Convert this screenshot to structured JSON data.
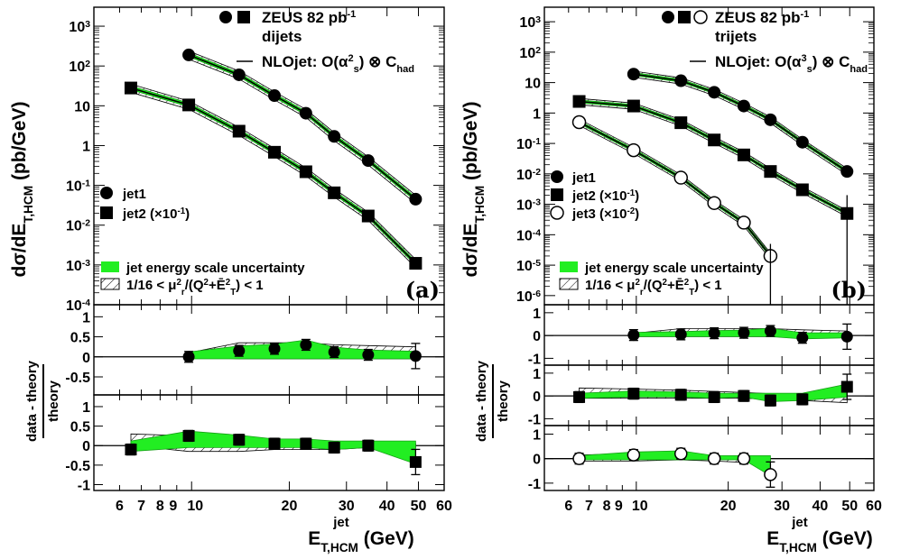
{
  "chart_data": [
    {
      "panel": "(a)",
      "type": "scatter",
      "experiment": "ZEUS 82 pb⁻¹",
      "sample": "dijets",
      "theory": "NLOjet: O(αs²) ⊗ Chad",
      "xlabel": "E T,HCM jet (GeV)",
      "ylabel": "dσ/dE T,HCM jet (pb/GeV)",
      "ratio_ylabel": "data - theory / theory",
      "xlim": [
        5,
        60
      ],
      "ylim": [
        0.0001,
        3000
      ],
      "xscale": "log",
      "yscale": "log",
      "legend": [
        "jet1",
        "jet2 (×10⁻¹)"
      ],
      "uncertainty_legend": [
        "jet energy scale uncertainty",
        "1/16 < μr²/(Q²+ĒT²) < 1"
      ],
      "series": [
        {
          "name": "jet1",
          "marker": "circle",
          "x": [
            9.8,
            14.0,
            18.0,
            22.5,
            27.5,
            35.0,
            49.0
          ],
          "y": [
            190,
            60,
            18,
            6.5,
            1.7,
            0.42,
            0.045
          ],
          "ratio": [
            0.0,
            0.15,
            0.2,
            0.3,
            0.12,
            0.05,
            0.02
          ]
        },
        {
          "name": "jet2",
          "marker": "square",
          "x": [
            6.5,
            9.8,
            14.0,
            18.0,
            22.5,
            27.5,
            35.0,
            49.0
          ],
          "y": [
            28,
            10.5,
            2.3,
            0.68,
            0.22,
            0.065,
            0.017,
            0.0011
          ],
          "ratio": [
            -0.1,
            0.25,
            0.15,
            0.05,
            0.05,
            -0.05,
            0.0,
            -0.42
          ]
        }
      ]
    },
    {
      "panel": "(b)",
      "type": "scatter",
      "experiment": "ZEUS 82 pb⁻¹",
      "sample": "trijets",
      "theory": "NLOjet: O(αs³) ⊗ Chad",
      "xlabel": "E T,HCM jet (GeV)",
      "ylabel": "dσ/dE T,HCM jet (pb/GeV)",
      "ratio_ylabel": "data - theory / theory",
      "xlim": [
        5,
        60
      ],
      "ylim": [
        5e-07,
        3000
      ],
      "xscale": "log",
      "yscale": "log",
      "legend": [
        "jet1",
        "jet2 (×10⁻¹)",
        "jet3 (×10⁻²)"
      ],
      "uncertainty_legend": [
        "jet energy scale uncertainty",
        "1/16 < μr²/(Q²+ĒT²) < 1"
      ],
      "series": [
        {
          "name": "jet1",
          "marker": "circle",
          "x": [
            9.8,
            14.0,
            18.0,
            22.5,
            27.5,
            35.0,
            49.0
          ],
          "y": [
            19,
            11.5,
            4.8,
            1.7,
            0.6,
            0.11,
            0.012
          ],
          "ratio": [
            0.02,
            0.05,
            0.1,
            0.12,
            0.2,
            -0.1,
            -0.05
          ]
        },
        {
          "name": "jet2",
          "marker": "square",
          "x": [
            6.5,
            9.8,
            14.0,
            18.0,
            22.5,
            27.5,
            35.0,
            49.0
          ],
          "y": [
            2.4,
            1.7,
            0.48,
            0.13,
            0.042,
            0.012,
            0.003,
            0.0005
          ],
          "ratio": [
            -0.05,
            0.1,
            0.05,
            -0.05,
            0.0,
            -0.2,
            -0.15,
            0.4
          ]
        },
        {
          "name": "jet3",
          "marker": "open-circle",
          "x": [
            6.5,
            9.8,
            14.0,
            18.0,
            22.5,
            27.5
          ],
          "y": [
            0.5,
            0.06,
            0.0075,
            0.0011,
            0.00025,
            2e-05
          ],
          "ratio": [
            0.0,
            0.15,
            0.2,
            0.0,
            0.0,
            -0.65
          ]
        }
      ]
    }
  ],
  "tick_labels": {
    "x": [
      "6",
      "7",
      "8",
      "9",
      "10",
      "20",
      "30",
      "40",
      "50",
      "60"
    ],
    "ratio_a_top": [
      "1",
      "0.5",
      "0",
      "-0.5"
    ],
    "ratio_a_bottom": [
      "1",
      "0.5",
      "0",
      "-0.5",
      "-1"
    ],
    "ratio_b": [
      "1",
      "0",
      "-1"
    ]
  },
  "colors": {
    "band": "#22ee22",
    "band_edge": "#16a016",
    "marker": "#000000",
    "theory": "#000000"
  }
}
